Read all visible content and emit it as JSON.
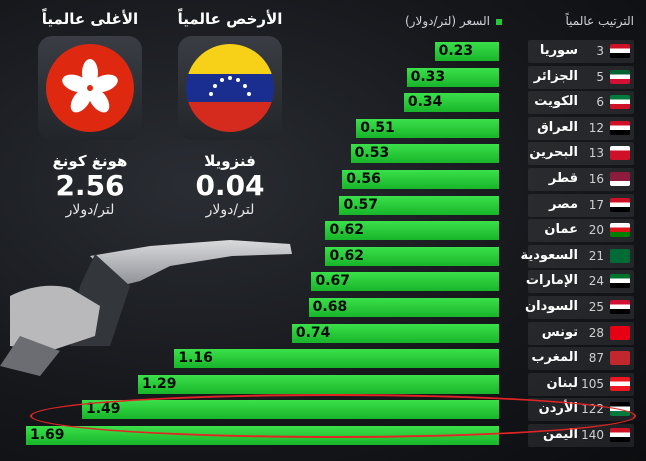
{
  "legend": {
    "rank_label": "الترتيب عالمياً",
    "price_label": "السعر (لتر/دولار)"
  },
  "cheapest": {
    "heading": "الأرخص عالمياً",
    "country": "فنزويلا",
    "price": "0.04",
    "unit": "لتر/دولار"
  },
  "priciest": {
    "heading": "الأغلى عالمياً",
    "country": "هونغ كونغ",
    "price": "2.56",
    "unit": "لتر/دولار"
  },
  "colors": {
    "bar": "#22c93a",
    "highlight": "#e42525"
  },
  "chart_data": {
    "type": "bar",
    "orientation": "horizontal",
    "categories": [
      "سوريا",
      "الجزائر",
      "الكويت",
      "العراق",
      "البحرين",
      "قطر",
      "مصر",
      "عمان",
      "السعودية",
      "الإمارات",
      "السودان",
      "تونس",
      "المغرب",
      "لبنان",
      "الأردن",
      "اليمن"
    ],
    "ranks": [
      "3",
      "5",
      "6",
      "12",
      "13",
      "16",
      "17",
      "20",
      "21",
      "24",
      "25",
      "28",
      "87",
      "105",
      "122",
      "140"
    ],
    "values": [
      0.23,
      0.33,
      0.34,
      0.51,
      0.53,
      0.56,
      0.57,
      0.62,
      0.62,
      0.67,
      0.68,
      0.74,
      1.16,
      1.29,
      1.49,
      1.69
    ],
    "value_labels": [
      "0.23",
      "0.33",
      "0.34",
      "0.51",
      "0.53",
      "0.56",
      "0.57",
      "0.62",
      "0.62",
      "0.67",
      "0.68",
      "0.74",
      "1.16",
      "1.29",
      "1.49",
      "1.69"
    ],
    "highlighted": "الأردن"
  }
}
